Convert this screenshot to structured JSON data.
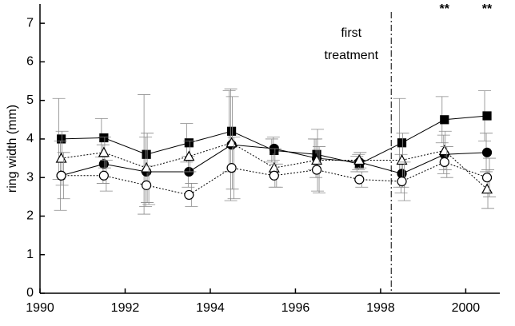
{
  "chart_data": {
    "type": "line",
    "y_label": "ring width (mm)",
    "x": [
      1990.5,
      1991.5,
      1992.5,
      1993.5,
      1994.5,
      1995.5,
      1996.5,
      1997.5,
      1998.5,
      1999.5,
      2000.5
    ],
    "xlim": [
      1990,
      2000.8
    ],
    "xticks": [
      1990,
      1992,
      1994,
      1996,
      1998,
      2000
    ],
    "ylim": [
      0,
      7.5
    ],
    "yticks": [
      0,
      1,
      2,
      3,
      4,
      5,
      6,
      7
    ],
    "series": [
      {
        "color": "#000000",
        "marker": "square",
        "filled": true,
        "dash": "solid",
        "values": [
          4.0,
          4.03,
          3.6,
          3.9,
          4.2,
          3.7,
          3.6,
          3.35,
          3.9,
          4.5,
          4.6
        ],
        "errors": [
          1.05,
          0.5,
          1.55,
          0.5,
          1.05,
          0.3,
          0.4,
          0.2,
          1.15,
          0.6,
          0.65
        ]
      },
      {
        "color": "#000000",
        "marker": "circle",
        "filled": true,
        "dash": "solid",
        "values": [
          3.05,
          3.35,
          3.15,
          3.15,
          3.85,
          3.75,
          3.5,
          3.4,
          3.1,
          3.6,
          3.65
        ],
        "errors": [
          0.9,
          0.5,
          0.9,
          0.4,
          1.45,
          0.3,
          0.5,
          0.2,
          0.5,
          0.5,
          0.5
        ]
      },
      {
        "color": "#000000",
        "marker": "triangle",
        "filled": false,
        "dash": "dotted",
        "values": [
          3.5,
          3.65,
          3.25,
          3.55,
          3.9,
          3.25,
          3.45,
          3.45,
          3.45,
          3.7,
          2.7
        ],
        "errors": [
          0.7,
          0.4,
          0.9,
          0.4,
          1.2,
          0.5,
          0.8,
          0.2,
          0.7,
          0.5,
          0.5
        ]
      },
      {
        "color": "#000000",
        "marker": "circle",
        "filled": false,
        "dash": "dotted",
        "values": [
          3.05,
          3.05,
          2.8,
          2.55,
          3.25,
          3.05,
          3.2,
          2.95,
          2.9,
          3.4,
          3.0
        ],
        "errors": [
          0.6,
          0.4,
          0.5,
          0.3,
          0.8,
          0.3,
          0.6,
          0.2,
          0.5,
          0.4,
          0.5
        ]
      }
    ],
    "treatment": {
      "x": 1998.25,
      "label": [
        "first",
        "treatment"
      ]
    },
    "annotations": [
      {
        "text": "**",
        "x": 1999.5
      },
      {
        "text": "**",
        "x": 2000.5
      }
    ]
  }
}
